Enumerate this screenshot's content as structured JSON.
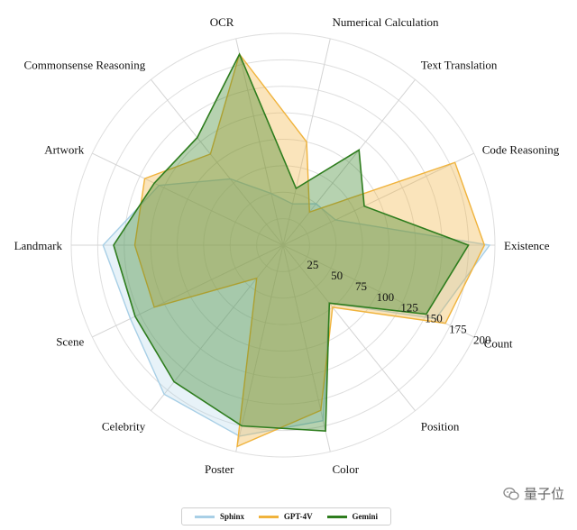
{
  "chart_data": {
    "type": "radar",
    "categories": [
      "Existence",
      "Count",
      "Position",
      "Color",
      "Poster",
      "Celebrity",
      "Scene",
      "Landmark",
      "Artwork",
      "Commonsense Reasoning",
      "OCR",
      "Numerical Calculation",
      "Text Translation",
      "Code Reasoning"
    ],
    "radial_ticks": [
      "25",
      "50",
      "75",
      "100",
      "125",
      "150",
      "175",
      "200"
    ],
    "rmax": 200,
    "grid": true,
    "legend_position": "bottom",
    "series": [
      {
        "name": "Sphinx",
        "color": "#a8cfe6",
        "values": [
          195,
          160,
          70,
          170,
          185,
          180,
          160,
          170,
          130,
          80,
          50,
          40,
          50,
          55
        ]
      },
      {
        "name": "GPT-4V",
        "color": "#f0b33c",
        "values": [
          190,
          170,
          75,
          160,
          195,
          40,
          135,
          140,
          145,
          110,
          185,
          100,
          40,
          180
        ]
      },
      {
        "name": "Gemini",
        "color": "#2e7d1e",
        "values": [
          175,
          150,
          70,
          180,
          175,
          165,
          155,
          160,
          135,
          130,
          185,
          55,
          115,
          85
        ]
      }
    ]
  },
  "watermark": {
    "text": "量子位"
  }
}
